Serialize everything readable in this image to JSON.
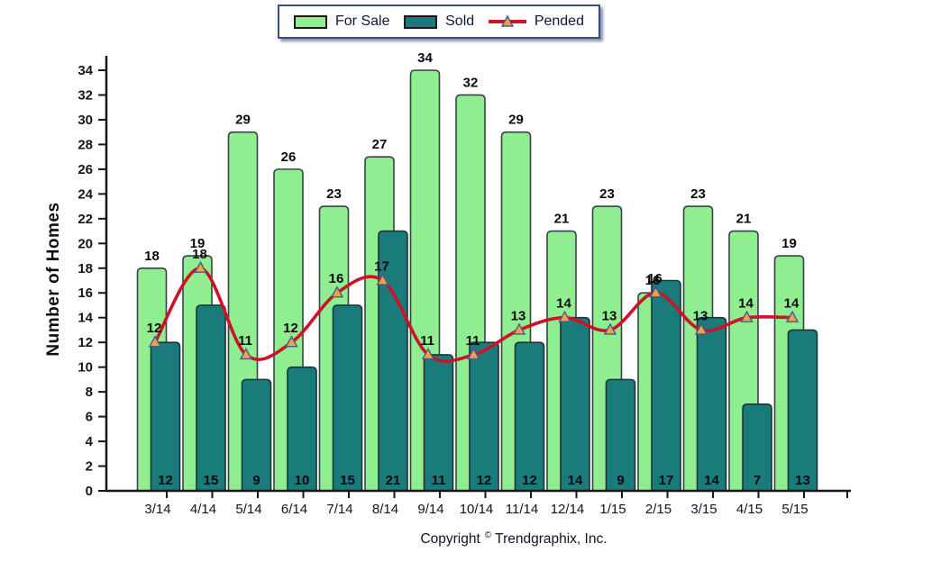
{
  "legend": {
    "items": [
      {
        "label": "For Sale",
        "color": "#8FEE90"
      },
      {
        "label": "Sold",
        "color": "#1A7B7B"
      },
      {
        "label": "Pended",
        "color": "#CE1126"
      }
    ]
  },
  "footer": {
    "prefix": "Copyright",
    "symbol": "©",
    "suffix": "Trendgraphix, Inc."
  },
  "colors": {
    "bar_outline": "#39424A",
    "axis": "#15161A",
    "marker_fill": "#F2A33C",
    "marker_stroke": "#4A5894",
    "legend_border": "#33507E"
  },
  "chart_data": {
    "type": "bar",
    "title": "",
    "xlabel": "",
    "ylabel": "Number of Homes",
    "ylim": [
      0,
      34
    ],
    "ytick_step": 2,
    "grid": false,
    "legend_position": "top-center",
    "categories": [
      "3/14",
      "4/14",
      "5/14",
      "6/14",
      "7/14",
      "8/14",
      "9/14",
      "10/14",
      "11/14",
      "12/14",
      "1/15",
      "2/15",
      "3/15",
      "4/15",
      "5/15"
    ],
    "series": [
      {
        "name": "For Sale",
        "type": "bar",
        "color": "#8FEE90",
        "values": [
          18,
          19,
          29,
          26,
          23,
          27,
          34,
          32,
          29,
          21,
          23,
          16,
          23,
          21,
          19
        ]
      },
      {
        "name": "Sold",
        "type": "bar",
        "color": "#1A7B7B",
        "values": [
          12,
          15,
          9,
          10,
          15,
          21,
          11,
          12,
          12,
          14,
          9,
          17,
          14,
          7,
          13
        ]
      },
      {
        "name": "Pended",
        "type": "line",
        "color": "#CE1126",
        "marker": "triangle",
        "marker_color": "#F2A33C",
        "values": [
          12,
          18,
          11,
          12,
          16,
          17,
          11,
          11,
          13,
          14,
          13,
          16,
          13,
          14,
          14
        ]
      }
    ]
  }
}
